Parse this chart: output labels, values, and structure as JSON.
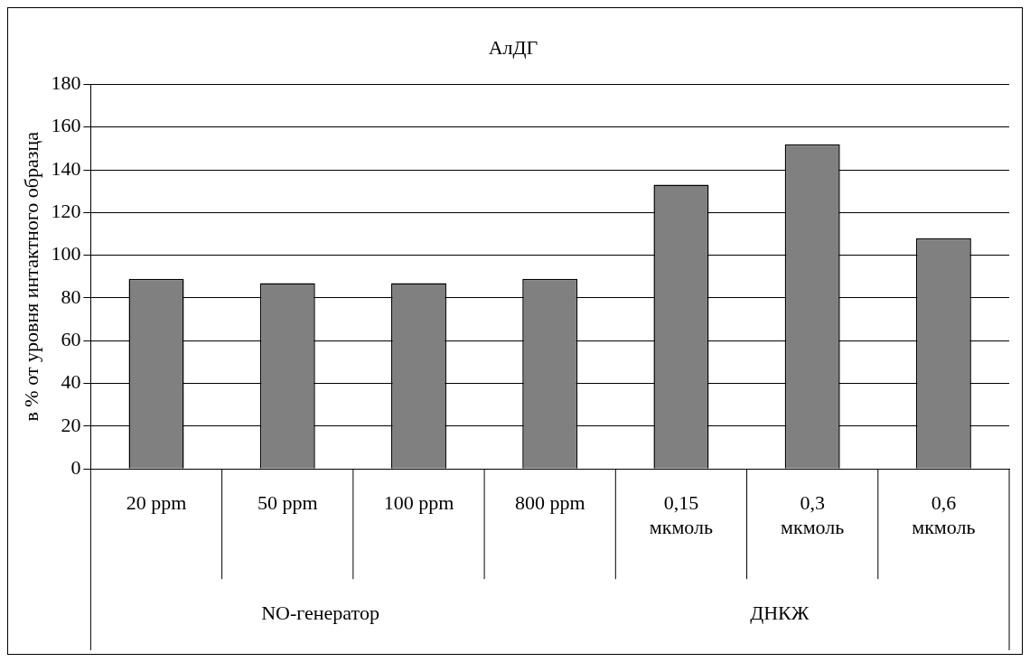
{
  "chart_data": {
    "type": "bar",
    "title": "АлДГ",
    "ylabel": "в % от уровня интактного образца",
    "categories": [
      "20 ppm",
      "50 ppm",
      "100 ppm",
      "800 ppm",
      "0,15 мкмоль",
      "0,3 мкмоль",
      "0,6 мкмоль"
    ],
    "values": [
      89,
      87,
      87,
      89,
      133,
      152,
      108
    ],
    "color": "#808080",
    "ylim": [
      0,
      180
    ],
    "yticks": [
      0,
      20,
      40,
      60,
      80,
      100,
      120,
      140,
      160,
      180
    ],
    "grid": "y",
    "legend": false,
    "annotations": [
      "NO-генератор",
      "ДНКЖ"
    ]
  }
}
